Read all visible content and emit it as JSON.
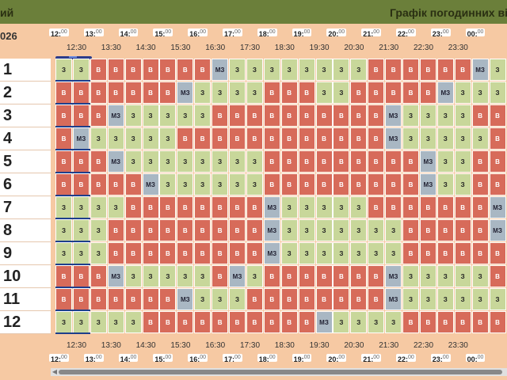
{
  "header": {
    "left_text": "ий",
    "right_text": "Графік погодинних від"
  },
  "date_fragment": "026",
  "hour_labels": [
    "12:00",
    "13:00",
    "14:00",
    "15:00",
    "16:00",
    "17:00",
    "18:00",
    "19:00",
    "20:00",
    "21:00",
    "22:00",
    "23:00",
    "00:00"
  ],
  "half_labels": [
    "12:30",
    "13:30",
    "14:30",
    "15:30",
    "16:30",
    "17:30",
    "18:30",
    "19:30",
    "20:30",
    "21:30",
    "22:30",
    "23:30"
  ],
  "row_labels": [
    "1",
    "2",
    "3",
    "4",
    "5",
    "6",
    "7",
    "8",
    "9",
    "10",
    "11",
    "12"
  ],
  "legend_cell": {
    "z": "З",
    "v": "В",
    "m": "МЗ"
  },
  "grid": [
    "zzvvvvvvvmzzzzzzzzvvvvvvmz",
    "vvvvvvvmzzzzvvvzzvvvvvmzzz",
    "vvvmzzzzzvvvvvvvvvvmzzzzvv",
    "vmzzzzzvvvvvvvvvvvvmzzzzzv",
    "vvvmzzzzzzzzvvvvvvvvvmzzvv",
    "vvvvvmzzzzzzvvvvvvvvvmzzvv",
    "zzzzvvvvvvvvmzzzzzvvvvvvvm",
    "zzzvvvvvvvvvmzzzzzzzvvvvvm",
    "zzzvvvvvvvvvmzzzzzzzvvvvvv",
    "vvvmzzzzzvmzvvvvvvvmzzzzzv",
    "vvvvvvvmzzzvvvvvvvvmzzzzzz",
    "zzzzzvvvvvvvvvvmzzzzvvvvvv"
  ],
  "scrollbar": {
    "left_arrow": "◀"
  }
}
